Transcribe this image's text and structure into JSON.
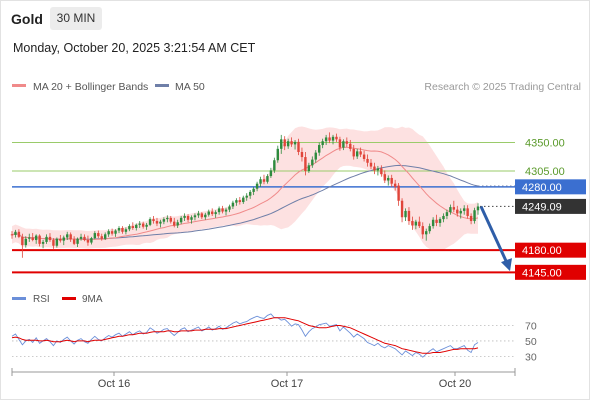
{
  "header": {
    "symbol": "Gold",
    "timeframe": "30 MIN",
    "timestamp": "Monday, October 20, 2025 3:21:54 AM CET"
  },
  "legend": {
    "ma20_label": "MA 20 + Bollinger Bands",
    "ma50_label": "MA 50",
    "copyright": "Research © 2025 Trading Central",
    "rsi_label": "RSI",
    "rsi_ma_label": "9MA"
  },
  "colors": {
    "up_candle": "#2e8b3e",
    "down_candle": "#e0453a",
    "bollinger_fill": "#fcd9d9",
    "ma20": "#f08a8a",
    "ma50": "#6f7fa8",
    "resistance_green": "#9acb6a",
    "resistance_blue": "#3b6fd0",
    "support_red": "#e00000",
    "current_price": "#333333",
    "arrow": "#2f5ea8",
    "rsi": "#6b8fd9",
    "rsi_ma": "#e00000"
  },
  "chart_data": [
    {
      "type": "candlestick",
      "title": "Gold",
      "xlabel": "",
      "ylabel": "",
      "ylim": [
        4125,
        4425
      ],
      "x_ticks": [
        "Oct 16",
        "Oct 17",
        "Oct 20"
      ],
      "grid": false,
      "levels": [
        {
          "value": 4350.0,
          "label": "4350.00",
          "kind": "resistance",
          "color": "#9acb6a"
        },
        {
          "value": 4305.0,
          "label": "4305.00",
          "kind": "resistance",
          "color": "#9acb6a"
        },
        {
          "value": 4280.0,
          "label": "4280.00",
          "kind": "pivot",
          "color": "#3b6fd0"
        },
        {
          "value": 4249.09,
          "label": "4249.09",
          "kind": "last-price",
          "color": "#333333"
        },
        {
          "value": 4180.0,
          "label": "4180.00",
          "kind": "support",
          "color": "#e00000"
        },
        {
          "value": 4145.0,
          "label": "4145.00",
          "kind": "support",
          "color": "#e00000"
        }
      ],
      "forecast_arrow": {
        "from": 4249,
        "to": 4147
      },
      "ohlc": [
        [
          4205,
          4210,
          4198,
          4204
        ],
        [
          4204,
          4212,
          4200,
          4209
        ],
        [
          4209,
          4213,
          4199,
          4201
        ],
        [
          4201,
          4206,
          4168,
          4188
        ],
        [
          4188,
          4202,
          4184,
          4198
        ],
        [
          4198,
          4206,
          4193,
          4200
        ],
        [
          4200,
          4207,
          4194,
          4196
        ],
        [
          4196,
          4205,
          4190,
          4203
        ],
        [
          4203,
          4205,
          4186,
          4190
        ],
        [
          4190,
          4196,
          4183,
          4193
        ],
        [
          4193,
          4205,
          4190,
          4201
        ],
        [
          4201,
          4207,
          4193,
          4196
        ],
        [
          4196,
          4199,
          4182,
          4187
        ],
        [
          4187,
          4200,
          4184,
          4198
        ],
        [
          4198,
          4204,
          4192,
          4195
        ],
        [
          4195,
          4203,
          4188,
          4200
        ],
        [
          4200,
          4209,
          4196,
          4205
        ],
        [
          4205,
          4208,
          4193,
          4197
        ],
        [
          4197,
          4202,
          4188,
          4190
        ],
        [
          4190,
          4200,
          4185,
          4198
        ],
        [
          4198,
          4206,
          4195,
          4201
        ],
        [
          4201,
          4205,
          4194,
          4196
        ],
        [
          4196,
          4203,
          4187,
          4192
        ],
        [
          4192,
          4201,
          4189,
          4199
        ],
        [
          4199,
          4210,
          4197,
          4207
        ],
        [
          4207,
          4211,
          4199,
          4202
        ],
        [
          4202,
          4206,
          4195,
          4198
        ],
        [
          4198,
          4208,
          4196,
          4205
        ],
        [
          4205,
          4213,
          4201,
          4210
        ],
        [
          4210,
          4214,
          4203,
          4206
        ],
        [
          4206,
          4213,
          4201,
          4211
        ],
        [
          4211,
          4218,
          4207,
          4215
        ],
        [
          4215,
          4218,
          4206,
          4209
        ],
        [
          4209,
          4216,
          4205,
          4213
        ],
        [
          4213,
          4221,
          4210,
          4218
        ],
        [
          4218,
          4224,
          4212,
          4215
        ],
        [
          4215,
          4222,
          4211,
          4220
        ],
        [
          4220,
          4226,
          4215,
          4222
        ],
        [
          4222,
          4225,
          4214,
          4217
        ],
        [
          4217,
          4223,
          4212,
          4220
        ],
        [
          4220,
          4232,
          4218,
          4229
        ],
        [
          4229,
          4234,
          4222,
          4226
        ],
        [
          4226,
          4231,
          4218,
          4222
        ],
        [
          4222,
          4228,
          4216,
          4225
        ],
        [
          4225,
          4232,
          4221,
          4229
        ],
        [
          4229,
          4235,
          4224,
          4231
        ],
        [
          4231,
          4234,
          4222,
          4225
        ],
        [
          4225,
          4231,
          4216,
          4219
        ],
        [
          4219,
          4228,
          4215,
          4224
        ],
        [
          4224,
          4234,
          4221,
          4231
        ],
        [
          4231,
          4238,
          4226,
          4234
        ],
        [
          4234,
          4237,
          4224,
          4228
        ],
        [
          4228,
          4235,
          4222,
          4232
        ],
        [
          4232,
          4238,
          4227,
          4235
        ],
        [
          4235,
          4242,
          4231,
          4238
        ],
        [
          4238,
          4240,
          4229,
          4232
        ],
        [
          4232,
          4239,
          4228,
          4236
        ],
        [
          4236,
          4244,
          4233,
          4241
        ],
        [
          4241,
          4246,
          4234,
          4237
        ],
        [
          4237,
          4243,
          4231,
          4240
        ],
        [
          4240,
          4249,
          4236,
          4246
        ],
        [
          4246,
          4250,
          4238,
          4241
        ],
        [
          4241,
          4247,
          4235,
          4244
        ],
        [
          4244,
          4252,
          4240,
          4249
        ],
        [
          4249,
          4258,
          4245,
          4255
        ],
        [
          4255,
          4262,
          4250,
          4259
        ],
        [
          4259,
          4264,
          4252,
          4256
        ],
        [
          4256,
          4266,
          4253,
          4263
        ],
        [
          4263,
          4270,
          4258,
          4266
        ],
        [
          4266,
          4275,
          4261,
          4272
        ],
        [
          4272,
          4280,
          4267,
          4277
        ],
        [
          4277,
          4288,
          4273,
          4285
        ],
        [
          4285,
          4296,
          4280,
          4292
        ],
        [
          4292,
          4299,
          4284,
          4288
        ],
        [
          4288,
          4300,
          4285,
          4297
        ],
        [
          4297,
          4310,
          4294,
          4306
        ],
        [
          4306,
          4326,
          4302,
          4322
        ],
        [
          4322,
          4345,
          4318,
          4340
        ],
        [
          4340,
          4362,
          4332,
          4355
        ],
        [
          4355,
          4360,
          4338,
          4344
        ],
        [
          4344,
          4356,
          4340,
          4352
        ],
        [
          4352,
          4358,
          4343,
          4347
        ],
        [
          4347,
          4354,
          4339,
          4351
        ],
        [
          4351,
          4356,
          4330,
          4335
        ],
        [
          4335,
          4342,
          4320,
          4327
        ],
        [
          4327,
          4335,
          4298,
          4305
        ],
        [
          4305,
          4318,
          4302,
          4314
        ],
        [
          4314,
          4328,
          4310,
          4323
        ],
        [
          4323,
          4338,
          4318,
          4334
        ],
        [
          4334,
          4350,
          4329,
          4346
        ],
        [
          4346,
          4356,
          4341,
          4352
        ],
        [
          4352,
          4362,
          4346,
          4358
        ],
        [
          4358,
          4366,
          4349,
          4353
        ],
        [
          4353,
          4362,
          4347,
          4359
        ],
        [
          4359,
          4364,
          4351,
          4355
        ],
        [
          4355,
          4359,
          4337,
          4342
        ],
        [
          4342,
          4355,
          4338,
          4352
        ],
        [
          4352,
          4358,
          4343,
          4348
        ],
        [
          4348,
          4354,
          4336,
          4340
        ],
        [
          4340,
          4346,
          4323,
          4328
        ],
        [
          4328,
          4340,
          4324,
          4336
        ],
        [
          4336,
          4342,
          4327,
          4331
        ],
        [
          4331,
          4337,
          4320,
          4324
        ],
        [
          4324,
          4331,
          4312,
          4318
        ],
        [
          4318,
          4324,
          4308,
          4312
        ],
        [
          4312,
          4318,
          4300,
          4306
        ],
        [
          4306,
          4313,
          4298,
          4309
        ],
        [
          4309,
          4314,
          4296,
          4300
        ],
        [
          4300,
          4306,
          4286,
          4290
        ],
        [
          4290,
          4298,
          4282,
          4294
        ],
        [
          4294,
          4299,
          4280,
          4285
        ],
        [
          4285,
          4291,
          4274,
          4280
        ],
        [
          4282,
          4286,
          4250,
          4258
        ],
        [
          4258,
          4262,
          4224,
          4232
        ],
        [
          4232,
          4246,
          4226,
          4242
        ],
        [
          4242,
          4248,
          4220,
          4226
        ],
        [
          4226,
          4233,
          4212,
          4219
        ],
        [
          4219,
          4228,
          4213,
          4225
        ],
        [
          4225,
          4233,
          4215,
          4218
        ],
        [
          4218,
          4224,
          4198,
          4205
        ],
        [
          4205,
          4214,
          4195,
          4210
        ],
        [
          4210,
          4222,
          4206,
          4218
        ],
        [
          4218,
          4232,
          4214,
          4228
        ],
        [
          4228,
          4236,
          4218,
          4223
        ],
        [
          4223,
          4232,
          4217,
          4229
        ],
        [
          4229,
          4238,
          4224,
          4234
        ],
        [
          4234,
          4244,
          4229,
          4240
        ],
        [
          4240,
          4252,
          4236,
          4248
        ],
        [
          4248,
          4258,
          4240,
          4244
        ],
        [
          4244,
          4250,
          4233,
          4238
        ],
        [
          4238,
          4246,
          4230,
          4242
        ],
        [
          4242,
          4251,
          4236,
          4246
        ],
        [
          4246,
          4251,
          4230,
          4234
        ],
        [
          4234,
          4238,
          4221,
          4226
        ],
        [
          4226,
          4247,
          4222,
          4243
        ],
        [
          4243,
          4254,
          4236,
          4249
        ]
      ],
      "rsi_ylim": [
        15,
        90
      ],
      "rsi_levels": [
        70,
        50,
        30
      ],
      "rsi": [
        56,
        59,
        52,
        45,
        50,
        52,
        48,
        54,
        47,
        50,
        53,
        49,
        44,
        50,
        48,
        52,
        55,
        50,
        46,
        51,
        53,
        49,
        47,
        52,
        56,
        52,
        50,
        54,
        57,
        55,
        58,
        60,
        56,
        59,
        62,
        58,
        61,
        63,
        59,
        61,
        67,
        64,
        60,
        62,
        65,
        66,
        61,
        57,
        61,
        65,
        67,
        62,
        64,
        66,
        68,
        63,
        65,
        68,
        64,
        66,
        69,
        65,
        67,
        70,
        73,
        75,
        72,
        74,
        75,
        78,
        80,
        82,
        80,
        79,
        83,
        85,
        80,
        80,
        77,
        78,
        74,
        69,
        72,
        71,
        64,
        56,
        62,
        66,
        68,
        71,
        72,
        73,
        69,
        70,
        71,
        63,
        68,
        64,
        60,
        55,
        59,
        56,
        53,
        48,
        46,
        44,
        47,
        43,
        41,
        44,
        42,
        40,
        36,
        32,
        37,
        34,
        31,
        35,
        33,
        29,
        33,
        37,
        40,
        36,
        38,
        40,
        42,
        44,
        40,
        40,
        42,
        44,
        38,
        35,
        45,
        48
      ],
      "rsi_ma": [
        54,
        55,
        54,
        52,
        51,
        51,
        51,
        51,
        50,
        50,
        51,
        50,
        49,
        49,
        49,
        50,
        51,
        50,
        49,
        50,
        50,
        50,
        49,
        50,
        51,
        51,
        51,
        52,
        53,
        54,
        55,
        56,
        56,
        57,
        58,
        58,
        59,
        60,
        60,
        60,
        61,
        62,
        62,
        62,
        62,
        63,
        63,
        62,
        62,
        63,
        63,
        63,
        63,
        64,
        64,
        64,
        65,
        65,
        65,
        65,
        66,
        66,
        66,
        67,
        68,
        69,
        70,
        71,
        72,
        73,
        74,
        75,
        76,
        77,
        78,
        79,
        80,
        80,
        80,
        80,
        79,
        78,
        77,
        76,
        74,
        72,
        70,
        69,
        68,
        67,
        67,
        67,
        68,
        69,
        70,
        70,
        69,
        68,
        67,
        65,
        63,
        61,
        59,
        57,
        55,
        53,
        51,
        49,
        47,
        46,
        45,
        44,
        42,
        40,
        39,
        38,
        37,
        36,
        35,
        34,
        34,
        34,
        35,
        35,
        35,
        36,
        37,
        38,
        39,
        39,
        40,
        40,
        40,
        40,
        40,
        41
      ]
    }
  ]
}
